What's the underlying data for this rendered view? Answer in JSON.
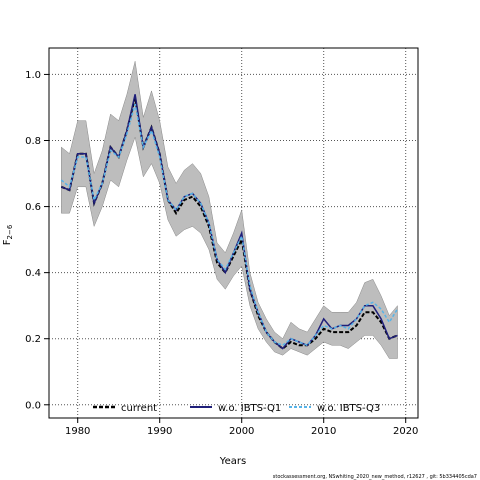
{
  "chart_data": {
    "type": "line",
    "xlabel": "Years",
    "ylabel": "F",
    "ylabel_sub": "2−6",
    "xlim": [
      1976.5,
      2021.5
    ],
    "ylim": [
      -0.04,
      1.08
    ],
    "xticks": [
      "1980",
      "1990",
      "2000",
      "2010",
      "2020"
    ],
    "xtick_values": [
      1980,
      1990,
      2000,
      2010,
      2020
    ],
    "yticks": [
      "0.0",
      "0.2",
      "0.4",
      "0.6",
      "0.8",
      "1.0"
    ],
    "ytick_values": [
      0.0,
      0.2,
      0.4,
      0.6,
      0.8,
      1.0
    ],
    "grid": true,
    "legend_position": "bottom",
    "footnote": "stockassessment.org, NSwhiting_2020_new_method, r12627 , git: 5b334405cda7",
    "x": [
      1978,
      1979,
      1980,
      1981,
      1982,
      1983,
      1984,
      1985,
      1986,
      1987,
      1988,
      1989,
      1990,
      1991,
      1992,
      1993,
      1994,
      1995,
      1996,
      1997,
      1998,
      1999,
      2000,
      2001,
      2002,
      2003,
      2004,
      2005,
      2006,
      2007,
      2008,
      2009,
      2010,
      2011,
      2012,
      2013,
      2014,
      2015,
      2016,
      2017,
      2018,
      2019
    ],
    "band": {
      "lower": [
        0.58,
        0.58,
        0.66,
        0.66,
        0.54,
        0.6,
        0.68,
        0.66,
        0.74,
        0.81,
        0.69,
        0.73,
        0.67,
        0.56,
        0.51,
        0.53,
        0.54,
        0.52,
        0.47,
        0.38,
        0.35,
        0.39,
        0.42,
        0.3,
        0.23,
        0.19,
        0.16,
        0.15,
        0.17,
        0.16,
        0.15,
        0.17,
        0.19,
        0.18,
        0.18,
        0.17,
        0.19,
        0.21,
        0.21,
        0.18,
        0.14,
        0.14
      ],
      "upper": [
        0.78,
        0.76,
        0.86,
        0.86,
        0.7,
        0.77,
        0.88,
        0.86,
        0.94,
        1.04,
        0.87,
        0.95,
        0.86,
        0.72,
        0.67,
        0.71,
        0.73,
        0.7,
        0.63,
        0.49,
        0.46,
        0.52,
        0.59,
        0.4,
        0.31,
        0.26,
        0.22,
        0.2,
        0.25,
        0.23,
        0.22,
        0.26,
        0.3,
        0.28,
        0.28,
        0.28,
        0.31,
        0.37,
        0.38,
        0.33,
        0.27,
        0.3
      ]
    },
    "series": [
      {
        "name": "current",
        "color": "#000000",
        "dash": "4,2",
        "values": [
          0.66,
          0.65,
          0.76,
          0.76,
          0.61,
          0.67,
          0.78,
          0.75,
          0.83,
          0.93,
          0.78,
          0.84,
          0.76,
          0.62,
          0.58,
          0.62,
          0.63,
          0.6,
          0.54,
          0.43,
          0.4,
          0.45,
          0.5,
          0.35,
          0.27,
          0.22,
          0.19,
          0.17,
          0.19,
          0.18,
          0.18,
          0.2,
          0.23,
          0.22,
          0.22,
          0.22,
          0.24,
          0.28,
          0.28,
          0.25,
          0.2,
          0.21
        ]
      },
      {
        "name": "w.o. IBTS-Q1",
        "color": "#1f1f7a",
        "dash": "",
        "values": [
          0.66,
          0.65,
          0.76,
          0.76,
          0.61,
          0.67,
          0.78,
          0.75,
          0.83,
          0.94,
          0.78,
          0.84,
          0.76,
          0.62,
          0.59,
          0.63,
          0.64,
          0.61,
          0.55,
          0.44,
          0.4,
          0.46,
          0.52,
          0.35,
          0.28,
          0.22,
          0.19,
          0.17,
          0.2,
          0.19,
          0.18,
          0.21,
          0.26,
          0.23,
          0.24,
          0.24,
          0.26,
          0.3,
          0.3,
          0.26,
          0.2,
          0.21
        ]
      },
      {
        "name": "w.o. IBTS-Q3",
        "color": "#56b4e9",
        "dash": "3,2",
        "values": [
          0.68,
          0.66,
          0.75,
          0.75,
          0.62,
          0.67,
          0.77,
          0.75,
          0.82,
          0.91,
          0.78,
          0.83,
          0.75,
          0.62,
          0.59,
          0.63,
          0.64,
          0.61,
          0.55,
          0.44,
          0.41,
          0.46,
          0.51,
          0.36,
          0.28,
          0.22,
          0.19,
          0.18,
          0.2,
          0.19,
          0.18,
          0.21,
          0.24,
          0.23,
          0.24,
          0.23,
          0.26,
          0.3,
          0.31,
          0.29,
          0.25,
          0.29
        ]
      }
    ],
    "band_color": "#bdbdbd"
  }
}
